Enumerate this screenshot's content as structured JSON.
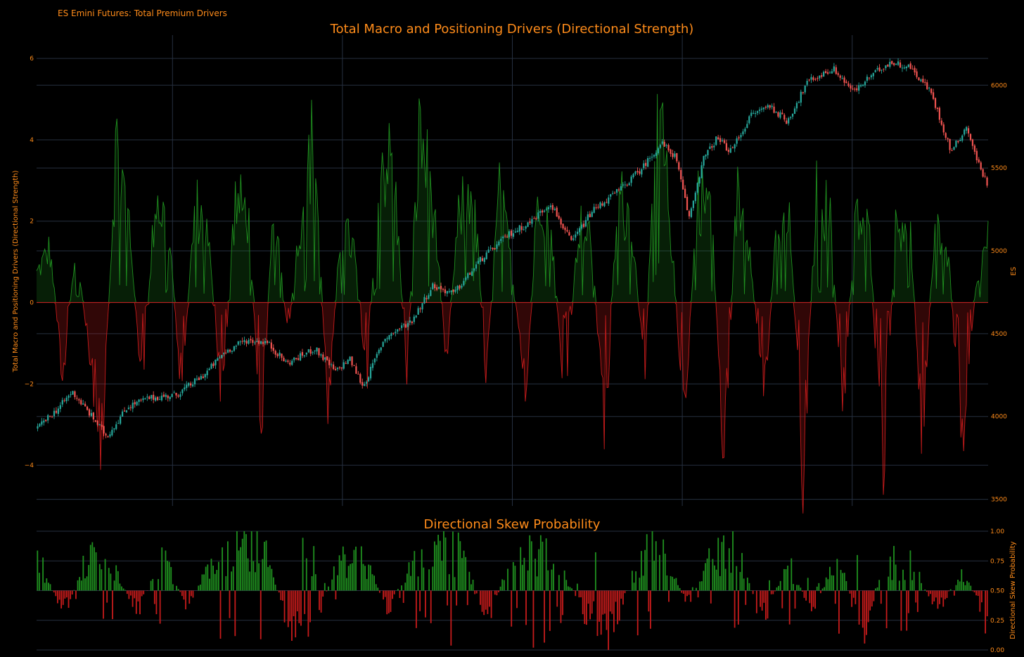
{
  "page": {
    "header": "ES Emini Futures: Total Premium Drivers"
  },
  "chart_data": [
    {
      "type": "area",
      "title": "Total Macro and Positioning Drivers (Directional Strength)",
      "ylabel": "Total Macro and Positioning Drivers (Directional Strength)",
      "y2label": "ES",
      "ylim": [
        -5.0,
        6.4
      ],
      "y_ticks": [
        6,
        4,
        2,
        0,
        -2,
        -4
      ],
      "y2lim": [
        3460,
        6260
      ],
      "y2_ticks": [
        6000,
        5500,
        5000,
        4500,
        4000,
        3500
      ],
      "grid": true,
      "colors": {
        "positive": "#1f8f1f",
        "negative": "#c41b1b",
        "up_candle": "#26a69a",
        "down_candle": "#ef5350"
      },
      "series": [
        {
          "kind": "drivers",
          "approx_peaks": [
            0.8,
            1.5,
            -2.0,
            1.6,
            -1.5,
            -3.8,
            4.4,
            2.3,
            -2.5,
            3.0,
            2.0,
            -2.5,
            2.8,
            1.8,
            -3.0,
            2.8,
            2.5,
            -3.3,
            2.9,
            -1.0,
            2.4,
            4.8,
            -3.0,
            2.1,
            1.5,
            -2.0,
            4.0,
            3.8,
            -1.9,
            4.8,
            2.8,
            -1.5,
            2.5,
            3.4,
            -1.8,
            3.0,
            1.0,
            -2.9,
            3.5,
            2.0,
            -3.0,
            2.2,
            1.6,
            -3.5,
            3.0,
            2.3,
            -2.0,
            5.8,
            2.0,
            -3.5,
            3.0,
            2.8,
            -4.2,
            3.0,
            1.6,
            -2.7,
            2.0,
            2.1,
            -4.6,
            3.0,
            2.5,
            -3.1,
            2.4,
            2.0,
            -4.8,
            2.0,
            2.6,
            -3.5,
            2.4,
            1.2,
            -3.6,
            0.2,
            1.9
          ]
        },
        {
          "kind": "ES candlestick",
          "approx_path": [
            {
              "t": 0.0,
              "close": 3930
            },
            {
              "t": 0.03,
              "close": 4050
            },
            {
              "t": 0.05,
              "close": 4150
            },
            {
              "t": 0.08,
              "close": 3990
            },
            {
              "t": 0.1,
              "close": 3880
            },
            {
              "t": 0.13,
              "close": 4060
            },
            {
              "t": 0.16,
              "close": 4110
            },
            {
              "t": 0.2,
              "close": 4130
            },
            {
              "t": 0.24,
              "close": 4250
            },
            {
              "t": 0.27,
              "close": 4390
            },
            {
              "t": 0.3,
              "close": 4460
            },
            {
              "t": 0.33,
              "close": 4450
            },
            {
              "t": 0.36,
              "close": 4320
            },
            {
              "t": 0.4,
              "close": 4410
            },
            {
              "t": 0.43,
              "close": 4270
            },
            {
              "t": 0.45,
              "close": 4350
            },
            {
              "t": 0.47,
              "close": 4180
            },
            {
              "t": 0.5,
              "close": 4470
            },
            {
              "t": 0.54,
              "close": 4580
            },
            {
              "t": 0.57,
              "close": 4790
            },
            {
              "t": 0.6,
              "close": 4740
            },
            {
              "t": 0.64,
              "close": 4950
            },
            {
              "t": 0.68,
              "close": 5100
            },
            {
              "t": 0.71,
              "close": 5170
            },
            {
              "t": 0.74,
              "close": 5290
            },
            {
              "t": 0.77,
              "close": 5050
            },
            {
              "t": 0.8,
              "close": 5240
            },
            {
              "t": 0.84,
              "close": 5370
            },
            {
              "t": 0.87,
              "close": 5490
            },
            {
              "t": 0.9,
              "close": 5650
            },
            {
              "t": 0.92,
              "close": 5570
            },
            {
              "t": 0.94,
              "close": 5200
            },
            {
              "t": 0.96,
              "close": 5550
            },
            {
              "t": 0.98,
              "close": 5680
            },
            {
              "t": 1.0,
              "close": 5600
            }
          ],
          "approx_path_2": [
            {
              "t": 0.0,
              "close": 5600
            },
            {
              "t": 0.08,
              "close": 5820
            },
            {
              "t": 0.15,
              "close": 5880
            },
            {
              "t": 0.22,
              "close": 5780
            },
            {
              "t": 0.3,
              "close": 6020
            },
            {
              "t": 0.4,
              "close": 6100
            },
            {
              "t": 0.48,
              "close": 5960
            },
            {
              "t": 0.55,
              "close": 6060
            },
            {
              "t": 0.62,
              "close": 6140
            },
            {
              "t": 0.7,
              "close": 6110
            },
            {
              "t": 0.78,
              "close": 5960
            },
            {
              "t": 0.86,
              "close": 5600
            },
            {
              "t": 0.92,
              "close": 5750
            },
            {
              "t": 0.96,
              "close": 5550
            },
            {
              "t": 1.0,
              "close": 5410
            }
          ]
        }
      ]
    },
    {
      "type": "bar",
      "title": "Directional Skew Probability",
      "ylabel": "Directional Skew Probability",
      "ylim": [
        0,
        1
      ],
      "y_ticks": [
        "1.00",
        "0.75",
        "0.50",
        "0.25",
        "0.00"
      ],
      "baseline": 0.5,
      "grid": true,
      "colors": {
        "above": "#1f8f1f",
        "below": "#c41b1b"
      },
      "approx_regimes": [
        0.85,
        0.25,
        0.82,
        0.72,
        0.3,
        0.8,
        0.35,
        0.78,
        0.9,
        0.95,
        0.2,
        0.15,
        0.75,
        0.88,
        0.3,
        0.8,
        0.9,
        0.85,
        0.2,
        0.82,
        0.88,
        0.7,
        0.25,
        0.1,
        0.8,
        0.92,
        0.35,
        0.85,
        0.88,
        0.2,
        0.78,
        0.3,
        0.82,
        0.1,
        0.8,
        0.75,
        0.3,
        0.7,
        0.2
      ]
    }
  ]
}
